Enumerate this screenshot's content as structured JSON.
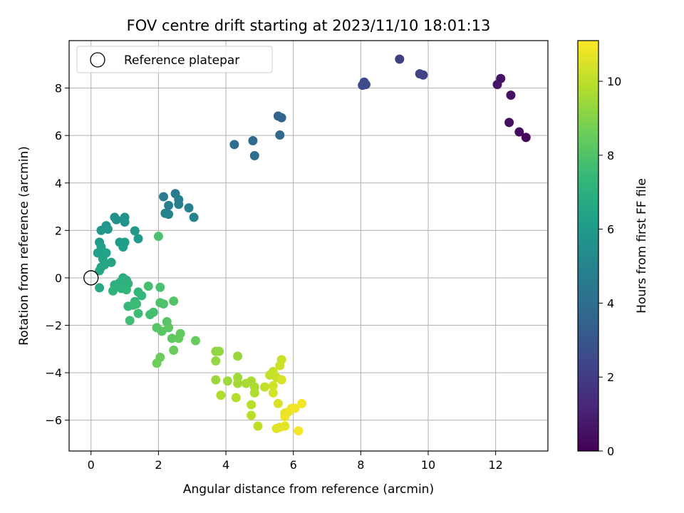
{
  "chart_data": {
    "type": "scatter",
    "title": "FOV centre drift starting at 2023/11/10 18:01:13",
    "xlabel": "Angular distance from reference (arcmin)",
    "ylabel": "Rotation from reference (arcmin)",
    "xlim": [
      -0.65,
      13.55
    ],
    "ylim": [
      -7.3,
      10.0
    ],
    "xticks": [
      0,
      2,
      4,
      6,
      8,
      10,
      12
    ],
    "yticks": [
      -6,
      -4,
      -2,
      0,
      2,
      4,
      6,
      8
    ],
    "grid": true,
    "legend": {
      "position": "top-left",
      "entries": [
        "Reference platepar"
      ]
    },
    "reference_point": {
      "x": 0,
      "y": 0,
      "label": "Reference platepar"
    },
    "colorbar": {
      "label": "Hours from first FF file",
      "range": [
        0,
        11.1
      ],
      "ticks": [
        0,
        2,
        4,
        6,
        8,
        10
      ],
      "colormap": [
        "#440154",
        "#482878",
        "#3e4989",
        "#31688e",
        "#26828e",
        "#1f9e89",
        "#35b779",
        "#6ece58",
        "#b5de2b",
        "#fde725"
      ]
    },
    "points": [
      {
        "x": 12.9,
        "y": 5.92,
        "c": 0.2
      },
      {
        "x": 12.7,
        "y": 6.15,
        "c": 0.3
      },
      {
        "x": 12.4,
        "y": 6.55,
        "c": 0.4
      },
      {
        "x": 12.45,
        "y": 7.7,
        "c": 0.5
      },
      {
        "x": 12.15,
        "y": 8.4,
        "c": 0.55
      },
      {
        "x": 12.05,
        "y": 8.15,
        "c": 0.6
      },
      {
        "x": 9.15,
        "y": 9.22,
        "c": 2.1
      },
      {
        "x": 9.75,
        "y": 8.6,
        "c": 2.2
      },
      {
        "x": 9.85,
        "y": 8.55,
        "c": 2.25
      },
      {
        "x": 8.1,
        "y": 8.25,
        "c": 2.5
      },
      {
        "x": 8.15,
        "y": 8.15,
        "c": 2.55
      },
      {
        "x": 8.05,
        "y": 8.12,
        "c": 2.6
      },
      {
        "x": 5.55,
        "y": 6.82,
        "c": 3.5
      },
      {
        "x": 5.65,
        "y": 6.75,
        "c": 3.6
      },
      {
        "x": 5.6,
        "y": 6.02,
        "c": 3.7
      },
      {
        "x": 4.8,
        "y": 5.78,
        "c": 3.8
      },
      {
        "x": 4.25,
        "y": 5.62,
        "c": 3.9
      },
      {
        "x": 4.85,
        "y": 5.15,
        "c": 4.0
      },
      {
        "x": 2.15,
        "y": 3.42,
        "c": 4.6
      },
      {
        "x": 2.5,
        "y": 3.55,
        "c": 4.65
      },
      {
        "x": 2.6,
        "y": 3.3,
        "c": 4.7
      },
      {
        "x": 2.3,
        "y": 3.05,
        "c": 4.75
      },
      {
        "x": 2.6,
        "y": 3.1,
        "c": 4.8
      },
      {
        "x": 2.9,
        "y": 2.95,
        "c": 4.85
      },
      {
        "x": 2.2,
        "y": 2.72,
        "c": 4.9
      },
      {
        "x": 2.3,
        "y": 2.68,
        "c": 4.95
      },
      {
        "x": 3.05,
        "y": 2.55,
        "c": 5.0
      },
      {
        "x": 0.7,
        "y": 2.55,
        "c": 5.6
      },
      {
        "x": 0.75,
        "y": 2.45,
        "c": 5.65
      },
      {
        "x": 1.0,
        "y": 2.55,
        "c": 5.7
      },
      {
        "x": 1.0,
        "y": 2.35,
        "c": 5.75
      },
      {
        "x": 0.45,
        "y": 2.2,
        "c": 5.8
      },
      {
        "x": 0.3,
        "y": 2.0,
        "c": 5.85
      },
      {
        "x": 0.5,
        "y": 2.05,
        "c": 5.9
      },
      {
        "x": 1.3,
        "y": 1.98,
        "c": 5.95
      },
      {
        "x": 1.4,
        "y": 1.65,
        "c": 6.0
      },
      {
        "x": 0.25,
        "y": 1.5,
        "c": 6.05
      },
      {
        "x": 0.85,
        "y": 1.5,
        "c": 6.1
      },
      {
        "x": 1.0,
        "y": 1.5,
        "c": 6.15
      },
      {
        "x": 0.3,
        "y": 1.3,
        "c": 6.2
      },
      {
        "x": 0.95,
        "y": 1.3,
        "c": 6.25
      },
      {
        "x": 0.2,
        "y": 1.05,
        "c": 6.3
      },
      {
        "x": 0.45,
        "y": 1.05,
        "c": 6.35
      },
      {
        "x": 0.35,
        "y": 0.8,
        "c": 6.4
      },
      {
        "x": 0.6,
        "y": 0.65,
        "c": 6.45
      },
      {
        "x": 0.4,
        "y": 0.55,
        "c": 6.5
      },
      {
        "x": 0.3,
        "y": 0.45,
        "c": 6.55
      },
      {
        "x": 0.25,
        "y": 0.3,
        "c": 6.6
      },
      {
        "x": 0.25,
        "y": -0.42,
        "c": 6.65
      },
      {
        "x": 0.95,
        "y": 0.0,
        "c": 6.9
      },
      {
        "x": 1.05,
        "y": -0.1,
        "c": 6.95
      },
      {
        "x": 0.7,
        "y": -0.3,
        "c": 7.0
      },
      {
        "x": 0.85,
        "y": -0.2,
        "c": 7.05
      },
      {
        "x": 1.1,
        "y": -0.25,
        "c": 7.1
      },
      {
        "x": 0.65,
        "y": -0.55,
        "c": 7.15
      },
      {
        "x": 0.9,
        "y": -0.45,
        "c": 7.2
      },
      {
        "x": 1.05,
        "y": -0.5,
        "c": 7.25
      },
      {
        "x": 1.4,
        "y": -0.6,
        "c": 7.3
      },
      {
        "x": 1.5,
        "y": -0.75,
        "c": 7.35
      },
      {
        "x": 1.3,
        "y": -1.0,
        "c": 7.4
      },
      {
        "x": 1.1,
        "y": -1.2,
        "c": 7.45
      },
      {
        "x": 1.25,
        "y": -1.15,
        "c": 7.5
      },
      {
        "x": 1.35,
        "y": -1.1,
        "c": 7.55
      },
      {
        "x": 1.4,
        "y": -1.5,
        "c": 7.6
      },
      {
        "x": 1.15,
        "y": -1.8,
        "c": 7.65
      },
      {
        "x": 1.75,
        "y": -1.55,
        "c": 7.7
      },
      {
        "x": 1.85,
        "y": -1.45,
        "c": 7.75
      },
      {
        "x": 1.7,
        "y": -0.35,
        "c": 7.8
      },
      {
        "x": 2.05,
        "y": -0.4,
        "c": 7.85
      },
      {
        "x": 2.0,
        "y": 1.75,
        "c": 7.9
      },
      {
        "x": 2.05,
        "y": -1.05,
        "c": 7.95
      },
      {
        "x": 2.15,
        "y": -1.1,
        "c": 8.0
      },
      {
        "x": 2.45,
        "y": -0.98,
        "c": 8.05
      },
      {
        "x": 2.25,
        "y": -1.85,
        "c": 8.1
      },
      {
        "x": 1.95,
        "y": -2.1,
        "c": 8.15
      },
      {
        "x": 2.1,
        "y": -2.25,
        "c": 8.2
      },
      {
        "x": 2.3,
        "y": -2.1,
        "c": 8.25
      },
      {
        "x": 2.4,
        "y": -2.55,
        "c": 8.3
      },
      {
        "x": 2.65,
        "y": -2.35,
        "c": 8.35
      },
      {
        "x": 2.6,
        "y": -2.55,
        "c": 8.4
      },
      {
        "x": 3.1,
        "y": -2.65,
        "c": 8.45
      },
      {
        "x": 2.45,
        "y": -3.05,
        "c": 8.5
      },
      {
        "x": 2.05,
        "y": -3.35,
        "c": 8.55
      },
      {
        "x": 1.95,
        "y": -3.6,
        "c": 8.6
      },
      {
        "x": 3.7,
        "y": -3.1,
        "c": 9.2
      },
      {
        "x": 3.8,
        "y": -3.1,
        "c": 9.25
      },
      {
        "x": 3.7,
        "y": -3.5,
        "c": 9.3
      },
      {
        "x": 4.35,
        "y": -3.3,
        "c": 9.35
      },
      {
        "x": 3.7,
        "y": -4.3,
        "c": 9.4
      },
      {
        "x": 4.05,
        "y": -4.35,
        "c": 9.45
      },
      {
        "x": 4.35,
        "y": -4.2,
        "c": 9.5
      },
      {
        "x": 4.35,
        "y": -4.45,
        "c": 9.55
      },
      {
        "x": 4.6,
        "y": -4.45,
        "c": 9.6
      },
      {
        "x": 4.75,
        "y": -4.35,
        "c": 9.65
      },
      {
        "x": 4.85,
        "y": -4.6,
        "c": 9.7
      },
      {
        "x": 4.85,
        "y": -4.85,
        "c": 9.75
      },
      {
        "x": 3.85,
        "y": -4.95,
        "c": 9.8
      },
      {
        "x": 4.3,
        "y": -5.05,
        "c": 9.85
      },
      {
        "x": 4.75,
        "y": -5.35,
        "c": 9.9
      },
      {
        "x": 4.75,
        "y": -5.8,
        "c": 9.95
      },
      {
        "x": 4.95,
        "y": -6.25,
        "c": 10.0
      },
      {
        "x": 5.15,
        "y": -4.6,
        "c": 10.05
      },
      {
        "x": 5.3,
        "y": -4.1,
        "c": 10.1
      },
      {
        "x": 5.4,
        "y": -3.95,
        "c": 10.15
      },
      {
        "x": 5.5,
        "y": -4.2,
        "c": 10.2
      },
      {
        "x": 5.65,
        "y": -3.45,
        "c": 10.25
      },
      {
        "x": 5.6,
        "y": -3.7,
        "c": 10.3
      },
      {
        "x": 5.4,
        "y": -4.55,
        "c": 10.35
      },
      {
        "x": 5.4,
        "y": -4.85,
        "c": 10.4
      },
      {
        "x": 5.65,
        "y": -4.3,
        "c": 10.45
      },
      {
        "x": 5.55,
        "y": -5.3,
        "c": 10.5
      },
      {
        "x": 5.5,
        "y": -6.35,
        "c": 10.55
      },
      {
        "x": 5.6,
        "y": -6.3,
        "c": 10.6
      },
      {
        "x": 5.75,
        "y": -6.25,
        "c": 10.65
      },
      {
        "x": 5.75,
        "y": -5.7,
        "c": 10.7
      },
      {
        "x": 5.85,
        "y": -5.65,
        "c": 10.75
      },
      {
        "x": 5.75,
        "y": -5.85,
        "c": 10.8
      },
      {
        "x": 5.95,
        "y": -5.5,
        "c": 10.85
      },
      {
        "x": 6.05,
        "y": -5.5,
        "c": 10.9
      },
      {
        "x": 6.25,
        "y": -5.3,
        "c": 10.95
      },
      {
        "x": 6.15,
        "y": -6.45,
        "c": 11.0
      }
    ]
  }
}
